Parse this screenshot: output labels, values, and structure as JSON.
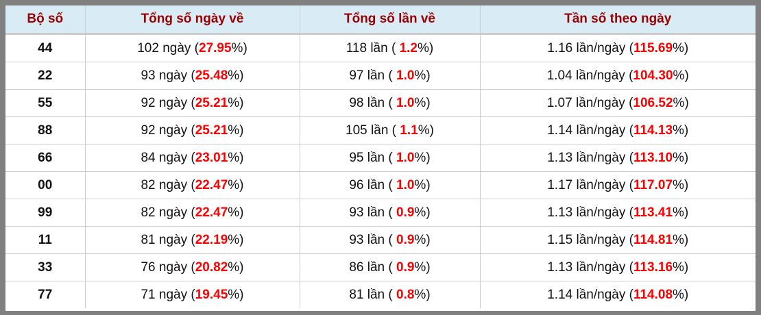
{
  "headers": [
    "Bộ số",
    "Tổng số ngày về",
    "Tổng số lần về",
    "Tần số theo ngày"
  ],
  "colors": {
    "header_text": "#990000",
    "header_bg": "#d9ecf5",
    "highlight": "#ff0000"
  },
  "rows": [
    {
      "bo_so": "44",
      "ngay": "102",
      "ngay_pct": "27.95",
      "lan": "118",
      "lan_pct": "1.2",
      "tan_so": "1.16",
      "tan_so_pct": "115.69"
    },
    {
      "bo_so": "22",
      "ngay": "93",
      "ngay_pct": "25.48",
      "lan": "97",
      "lan_pct": "1.0",
      "tan_so": "1.04",
      "tan_so_pct": "104.30"
    },
    {
      "bo_so": "55",
      "ngay": "92",
      "ngay_pct": "25.21",
      "lan": "98",
      "lan_pct": "1.0",
      "tan_so": "1.07",
      "tan_so_pct": "106.52"
    },
    {
      "bo_so": "88",
      "ngay": "92",
      "ngay_pct": "25.21",
      "lan": "105",
      "lan_pct": "1.1",
      "tan_so": "1.14",
      "tan_so_pct": "114.13"
    },
    {
      "bo_so": "66",
      "ngay": "84",
      "ngay_pct": "23.01",
      "lan": "95",
      "lan_pct": "1.0",
      "tan_so": "1.13",
      "tan_so_pct": "113.10"
    },
    {
      "bo_so": "00",
      "ngay": "82",
      "ngay_pct": "22.47",
      "lan": "96",
      "lan_pct": "1.0",
      "tan_so": "1.17",
      "tan_so_pct": "117.07"
    },
    {
      "bo_so": "99",
      "ngay": "82",
      "ngay_pct": "22.47",
      "lan": "93",
      "lan_pct": "0.9",
      "tan_so": "1.13",
      "tan_so_pct": "113.41"
    },
    {
      "bo_so": "11",
      "ngay": "81",
      "ngay_pct": "22.19",
      "lan": "93",
      "lan_pct": "0.9",
      "tan_so": "1.15",
      "tan_so_pct": "114.81"
    },
    {
      "bo_so": "33",
      "ngay": "76",
      "ngay_pct": "20.82",
      "lan": "86",
      "lan_pct": "0.9",
      "tan_so": "1.13",
      "tan_so_pct": "113.16"
    },
    {
      "bo_so": "77",
      "ngay": "71",
      "ngay_pct": "19.45",
      "lan": "81",
      "lan_pct": "0.8",
      "tan_so": "1.14",
      "tan_so_pct": "114.08"
    }
  ],
  "units": {
    "ngay": "ngày",
    "lan": "lần",
    "tan_so": "lần/ngày"
  }
}
